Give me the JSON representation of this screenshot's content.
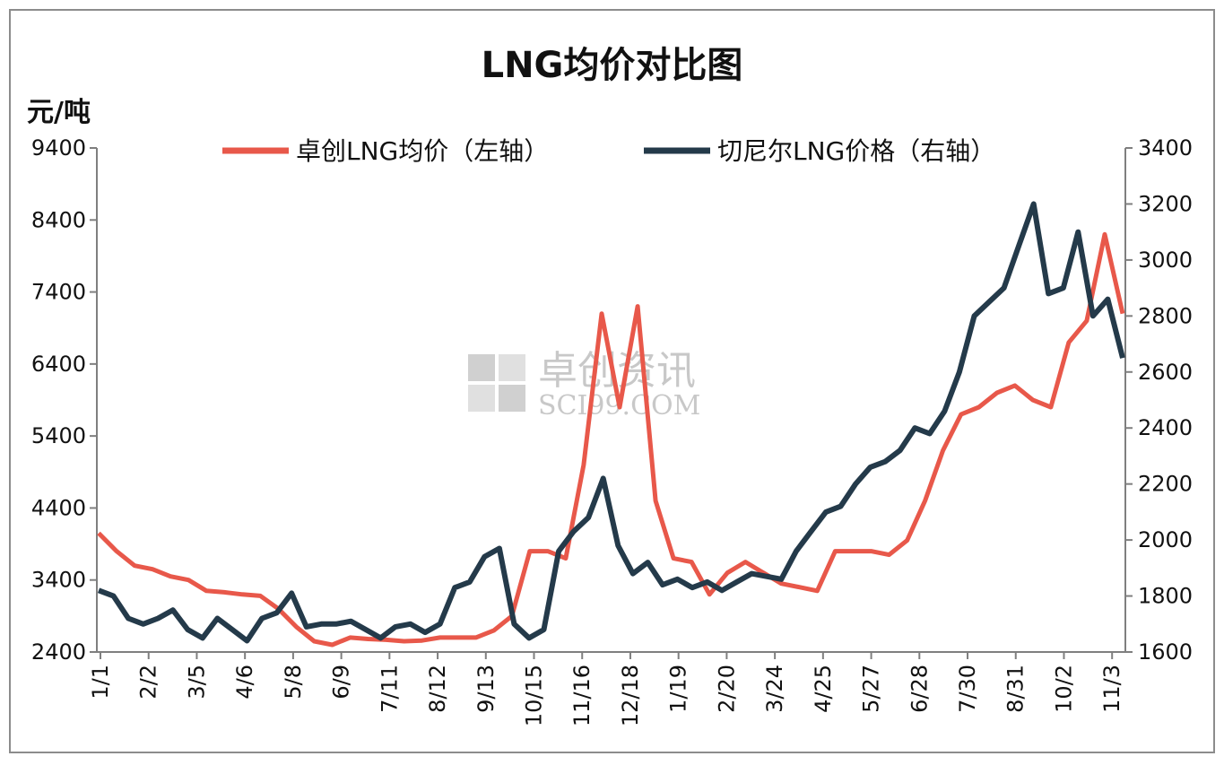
{
  "chart_data": {
    "type": "line",
    "title": "LNG均价对比图",
    "ylabel": "元/吨",
    "watermark": {
      "text_cn": "卓创资讯",
      "text_en": "SCI99.COM"
    },
    "x_ticks": [
      "1/1",
      "2/2",
      "3/5",
      "4/6",
      "5/8",
      "6/9",
      "7/11",
      "8/12",
      "9/13",
      "10/15",
      "11/16",
      "12/18",
      "1/19",
      "2/20",
      "3/24",
      "4/25",
      "5/27",
      "6/28",
      "7/30",
      "8/31",
      "10/2",
      "11/3"
    ],
    "y_left": {
      "ticks": [
        2400,
        3400,
        4400,
        5400,
        6400,
        7400,
        8400,
        9400
      ],
      "ylim": [
        2400,
        9400
      ]
    },
    "y_right": {
      "ticks": [
        1600,
        1800,
        2000,
        2200,
        2400,
        2600,
        2800,
        3000,
        3200,
        3400
      ],
      "ylim": [
        1600,
        3400
      ]
    },
    "series": [
      {
        "name": "卓创LNG均价（左轴）",
        "axis": "left",
        "color": "#e8584a",
        "values": [
          4050,
          3800,
          3600,
          3550,
          3450,
          3400,
          3250,
          3230,
          3200,
          3180,
          3000,
          2750,
          2550,
          2500,
          2600,
          2580,
          2570,
          2550,
          2560,
          2600,
          2600,
          2600,
          2700,
          2900,
          3800,
          3800,
          3700,
          5000,
          7100,
          5800,
          7200,
          4500,
          3700,
          3650,
          3200,
          3500,
          3650,
          3500,
          3350,
          3300,
          3250,
          3800,
          3800,
          3800,
          3750,
          3950,
          4500,
          5200,
          5700,
          5800,
          6000,
          6100,
          5900,
          5800,
          6700,
          7000,
          8200,
          7100
        ]
      },
      {
        "name": "切尼尔LNG价格（右轴）",
        "axis": "right",
        "color": "#243a4a",
        "values": [
          1820,
          1800,
          1720,
          1700,
          1720,
          1750,
          1680,
          1650,
          1720,
          1680,
          1640,
          1720,
          1740,
          1810,
          1690,
          1700,
          1700,
          1710,
          1680,
          1650,
          1690,
          1700,
          1670,
          1700,
          1830,
          1850,
          1940,
          1970,
          1700,
          1650,
          1680,
          1960,
          2030,
          2080,
          2220,
          1980,
          1880,
          1920,
          1840,
          1860,
          1830,
          1850,
          1820,
          1850,
          1880,
          1870,
          1860,
          1960,
          2030,
          2100,
          2120,
          2200,
          2260,
          2280,
          2320,
          2400,
          2380,
          2460,
          2600,
          2800,
          2850,
          2900,
          3050,
          3200,
          2880,
          2900,
          3100,
          2800,
          2860,
          2650
        ]
      }
    ]
  },
  "legend": {
    "left_series": "卓创LNG均价（左轴）",
    "right_series": "切尼尔LNG价格（右轴）"
  }
}
